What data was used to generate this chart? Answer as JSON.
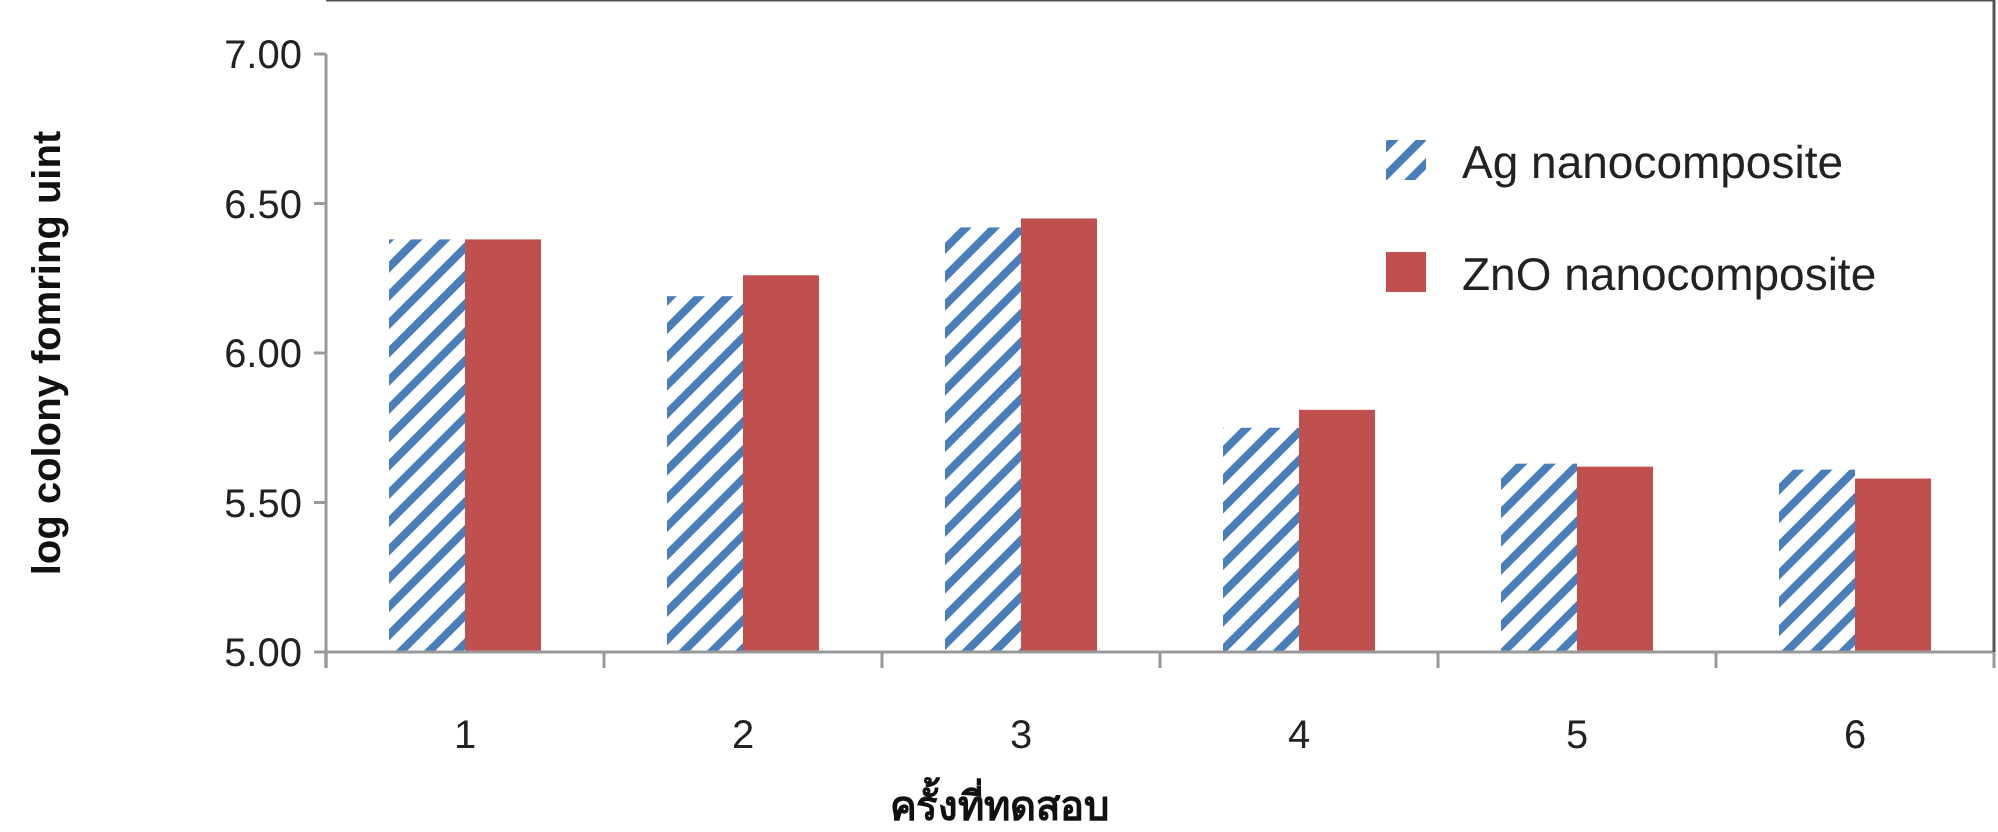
{
  "chart_data": {
    "type": "bar",
    "xlabel": "ครั้งที่ทดสอบ",
    "ylabel": "log colony fomring uint",
    "categories": [
      "1",
      "2",
      "3",
      "4",
      "5",
      "6"
    ],
    "series": [
      {
        "name": "Ag nanocomposite",
        "color": "#4a7ebb",
        "values": [
          6.38,
          6.19,
          6.42,
          5.75,
          5.63,
          5.61
        ]
      },
      {
        "name": "ZnO nanocomposite",
        "color": "#c0504d",
        "values": [
          6.38,
          6.26,
          6.45,
          5.81,
          5.62,
          5.58
        ]
      }
    ],
    "ylim": [
      5,
      7
    ],
    "yticks": [
      {
        "value": 5,
        "label": "5.00"
      },
      {
        "value": 5.5,
        "label": "5.50"
      },
      {
        "value": 6,
        "label": "6.00"
      },
      {
        "value": 6.5,
        "label": "6.50"
      },
      {
        "value": 7,
        "label": "7.00"
      }
    ],
    "grid": false,
    "legend": "top right"
  }
}
